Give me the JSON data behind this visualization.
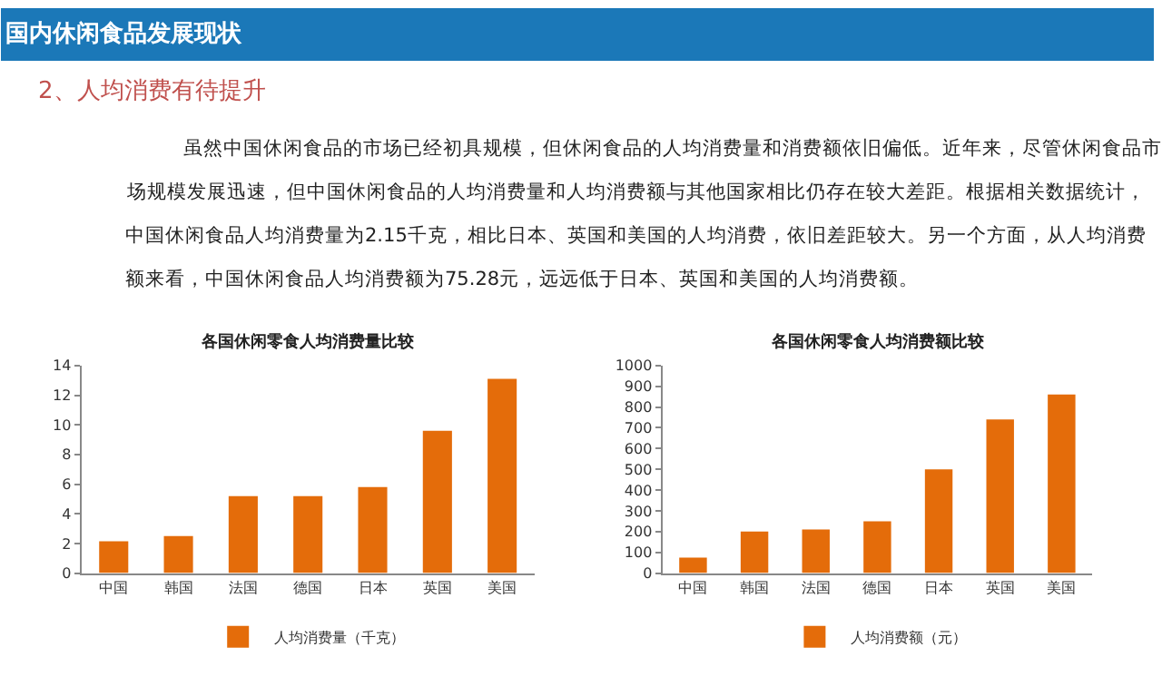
{
  "chart_data": [
    {
      "type": "other",
      "title": "国内休闲食品发展现状",
      "subtitle": "2、人均消费有待提升",
      "annotations": [
        "虽然中国休闲食品的市场已经初具规模，但休闲食品的人均消费量和消费额依旧偏低。近年来，尽管休闲食品市",
        "场规模发展迅速，但中国休闲食品的人均消费量和人均消费额与其他国家相比仍存在较大差距。根据相关数据统计，",
        "中国休闲食品人均消费量为2.15千克，相比日本、英国和美国的人均消费，依旧差距较大。另一个方面，从人均消费",
        "额来看，中国休闲食品人均消费额为75.28元，远远低于日本、英国和美国的人均消费额。"
      ]
    },
    {
      "type": "bar",
      "title": "各国休闲零食人均消费量比较",
      "categories": [
        "中国",
        "韩国",
        "法国",
        "德国",
        "日本",
        "英国",
        "美国"
      ],
      "series": [
        {
          "name": "人均消费量（千克）",
          "color": "#e46c0a",
          "values": [
            2.15,
            2.5,
            5.2,
            5.2,
            5.8,
            9.6,
            13.1
          ]
        }
      ],
      "ylim": [
        0,
        14
      ],
      "yticks": [
        0,
        2,
        4,
        6,
        8,
        10,
        12,
        14
      ],
      "legend": "bottom",
      "grid": false
    },
    {
      "type": "bar",
      "title": "各国休闲零食人均消费额比较",
      "categories": [
        "中国",
        "韩国",
        "法国",
        "德国",
        "日本",
        "英国",
        "美国"
      ],
      "series": [
        {
          "name": "人均消费额（元）",
          "color": "#e46c0a",
          "values": [
            75,
            200,
            210,
            250,
            500,
            740,
            860
          ]
        }
      ],
      "ylim": [
        0,
        1000
      ],
      "yticks": [
        0,
        100,
        200,
        300,
        400,
        500,
        600,
        700,
        800,
        900,
        1000
      ],
      "legend": "bottom",
      "grid": false
    }
  ]
}
